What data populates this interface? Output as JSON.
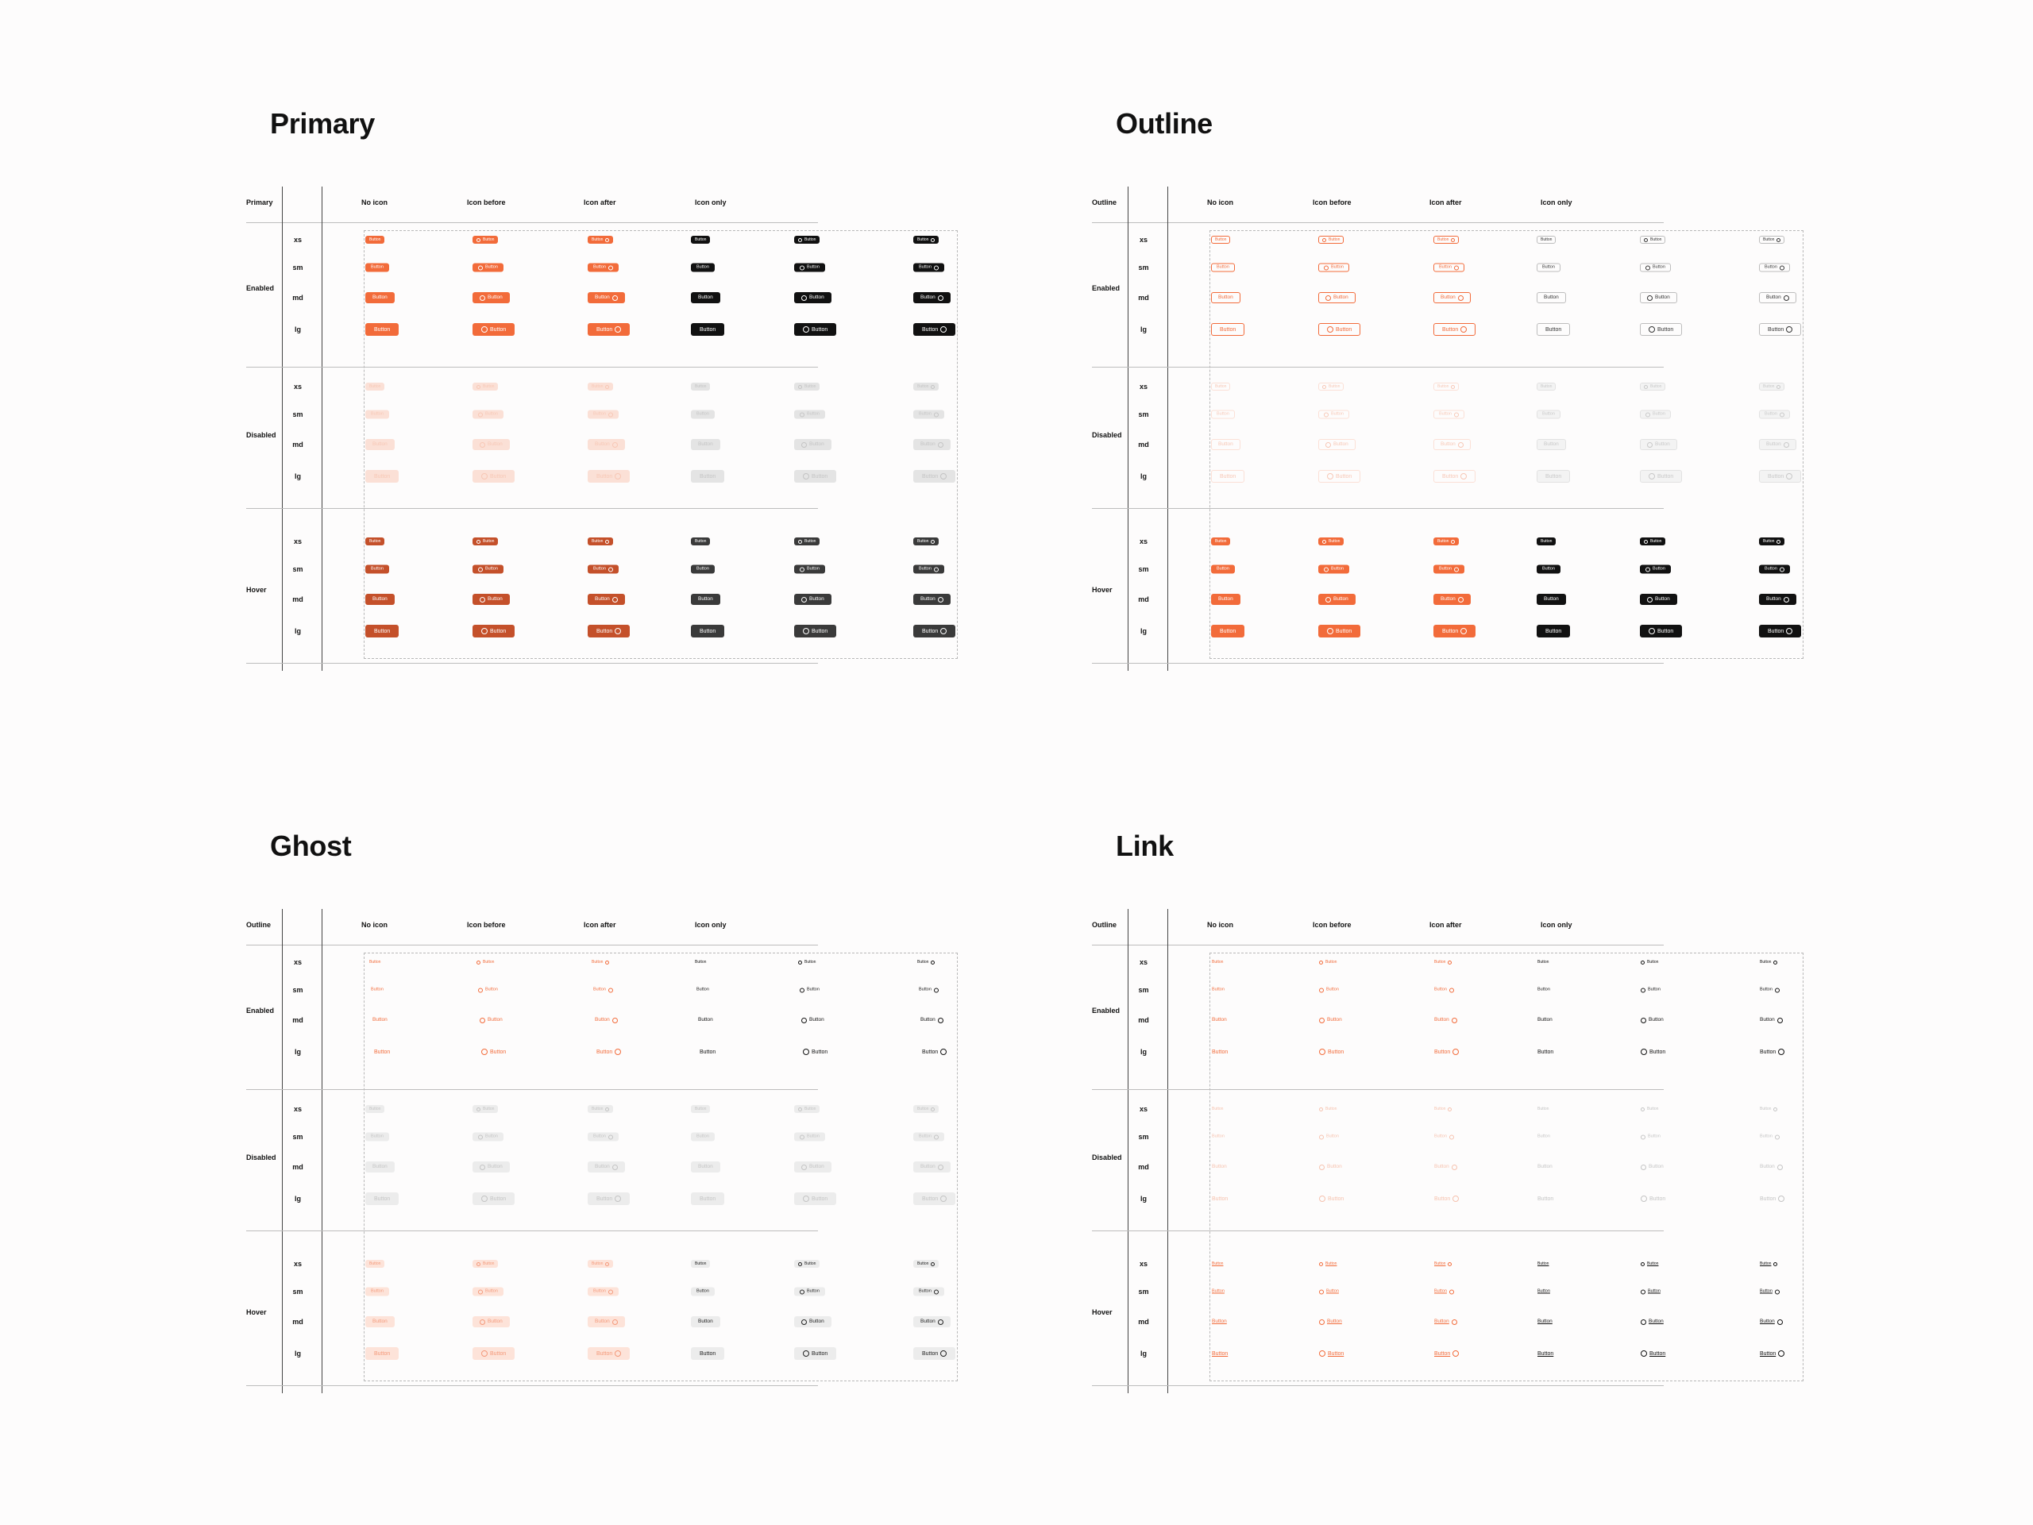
{
  "sections": [
    {
      "key": "primary",
      "title": "Primary",
      "corner_label": "Primary",
      "variant": "primary",
      "columns": [
        "No icon",
        "Icon before",
        "Icon after",
        "Icon only"
      ],
      "states": [
        "Enabled",
        "Disabled",
        "Hover"
      ],
      "sizes": [
        "xs",
        "sm",
        "md",
        "lg"
      ],
      "button_label": "Button"
    },
    {
      "key": "outline",
      "title": "Outline",
      "corner_label": "Outline",
      "variant": "outline",
      "columns": [
        "No icon",
        "Icon before",
        "Icon after",
        "Icon only"
      ],
      "states": [
        "Enabled",
        "Disabled",
        "Hover"
      ],
      "sizes": [
        "xs",
        "sm",
        "md",
        "lg"
      ],
      "button_label": "Button"
    },
    {
      "key": "ghost",
      "title": "Ghost",
      "corner_label": "Outline",
      "variant": "ghost",
      "columns": [
        "No icon",
        "Icon before",
        "Icon after",
        "Icon only"
      ],
      "states": [
        "Enabled",
        "Disabled",
        "Hover"
      ],
      "sizes": [
        "xs",
        "sm",
        "md",
        "lg"
      ],
      "button_label": "Button"
    },
    {
      "key": "link",
      "title": "Link",
      "corner_label": "Outline",
      "variant": "link",
      "columns": [
        "No icon",
        "Icon before",
        "Icon after",
        "Icon only"
      ],
      "states": [
        "Enabled",
        "Disabled",
        "Hover"
      ],
      "sizes": [
        "xs",
        "sm",
        "md",
        "lg"
      ],
      "button_label": "Button"
    }
  ],
  "colors": {
    "accent": "#f26b3a",
    "accent_hover": "#c4502a",
    "accent_disabled": "#fbe0d6",
    "neutral": "#111111",
    "neutral_hover": "#3a3a3a",
    "neutral_disabled": "#e4e4e4",
    "ghost_hover_bg": "#fde3d9",
    "ghost_hover_neutral_bg": "#ececec"
  }
}
